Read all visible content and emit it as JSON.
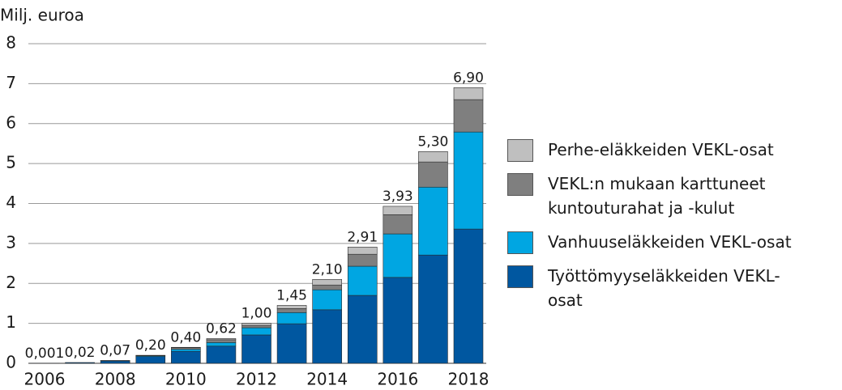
{
  "chart_data": {
    "type": "stacked-bar",
    "y_label": "Milj. euroa",
    "categories": [
      "2006",
      null,
      "2008",
      null,
      "2010",
      null,
      "2012",
      null,
      "2014",
      null,
      "2016",
      null,
      "2018"
    ],
    "series": [
      {
        "name": "Työttömyyseläkkeiden VEKL-osat",
        "color": "#0057a0",
        "values": [
          0.001,
          0.02,
          0.06,
          0.17,
          0.3,
          0.43,
          0.71,
          0.99,
          1.34,
          1.7,
          2.15,
          2.71,
          3.36
        ]
      },
      {
        "name": "Vanhuuseläkkeiden VEKL-osat",
        "color": "#00a6e2",
        "values": [
          0,
          0,
          0.005,
          0.02,
          0.05,
          0.09,
          0.18,
          0.28,
          0.5,
          0.73,
          1.09,
          1.7,
          2.43
        ]
      },
      {
        "name": "VEKL:n mukaan karttuneet kuntouturahat ja -kulut",
        "color": "#7f7f7f",
        "values": [
          0,
          0,
          0.003,
          0.007,
          0.04,
          0.07,
          0.06,
          0.1,
          0.12,
          0.3,
          0.48,
          0.63,
          0.81
        ]
      },
      {
        "name": "Perhe-eläkkeiden VEKL-osat",
        "color": "#bfbfbf",
        "values": [
          0,
          0,
          0.002,
          0.003,
          0.01,
          0.03,
          0.05,
          0.08,
          0.14,
          0.18,
          0.21,
          0.26,
          0.3
        ]
      }
    ],
    "totals": [
      0.001,
      0.02,
      0.07,
      0.2,
      0.4,
      0.62,
      1.0,
      1.45,
      2.1,
      2.91,
      3.93,
      5.3,
      6.9
    ],
    "total_labels": [
      "0,001",
      "0,02",
      "0,07",
      "0,20",
      "0,40",
      "0,62",
      "1,00",
      "1,45",
      "2,10",
      "2,91",
      "3,93",
      "5,30",
      "6,90"
    ],
    "ylim": [
      0,
      8
    ],
    "yticks": [
      0,
      1,
      2,
      3,
      4,
      5,
      6,
      7,
      8
    ],
    "grid": true,
    "legend": "right"
  }
}
